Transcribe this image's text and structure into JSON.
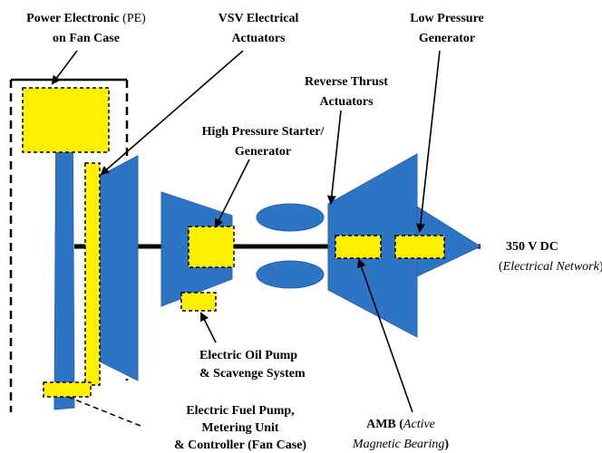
{
  "power_electronic": {
    "name": "Power Electronic",
    "abbr": "(PE)",
    "line2": "on Fan Case"
  },
  "vsv_actuators": {
    "line1": "VSV Electrical",
    "line2": "Actuators"
  },
  "low_pressure_generator": {
    "line1": "Low Pressure",
    "line2": "Generator"
  },
  "reverse_thrust_actuators": {
    "line1": "Reverse Thrust",
    "line2": "Actuators"
  },
  "high_pressure_starter": {
    "line1": "High Pressure Starter/",
    "line2": "Generator"
  },
  "network": {
    "voltage": "350 V DC",
    "open": "(",
    "name": "Electrical Network",
    "close": ")"
  },
  "oil_pump": {
    "line1": "Electric Oil Pump",
    "line2": "& Scavenge System"
  },
  "fuel_pump": {
    "line1": "Electric Fuel Pump,",
    "line2": "Metering Unit",
    "line3": "& Controller (Fan Case)"
  },
  "amb": {
    "abbr": "AMB (",
    "line1_italic": "Active",
    "line2_italic": "Magnetic Bearing",
    "close": ")"
  }
}
